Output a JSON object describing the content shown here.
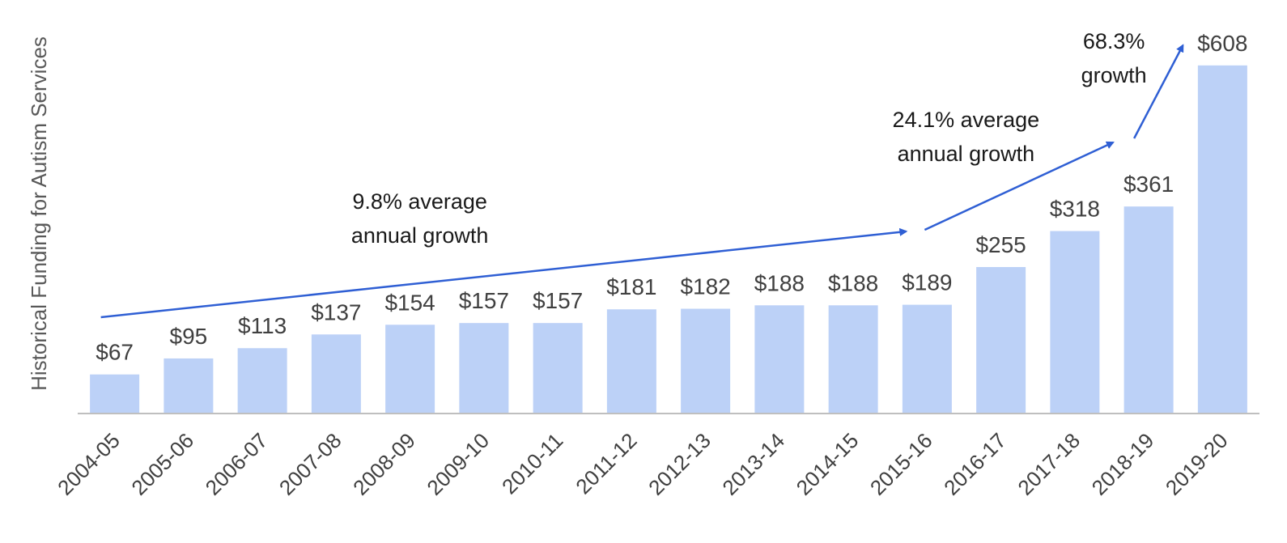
{
  "chart_data": {
    "type": "bar",
    "ylabel": "Historical Funding for Autism Services",
    "xlabel": "",
    "categories": [
      "2004-05",
      "2005-06",
      "2006-07",
      "2007-08",
      "2008-09",
      "2009-10",
      "2010-11",
      "2011-12",
      "2012-13",
      "2013-14",
      "2014-15",
      "2015-16",
      "2016-17",
      "2017-18",
      "2018-19",
      "2019-20"
    ],
    "values": [
      67,
      95,
      113,
      137,
      154,
      157,
      157,
      181,
      182,
      188,
      188,
      189,
      255,
      318,
      361,
      608
    ],
    "data_labels": [
      "$67",
      "$95",
      "$113",
      "$137",
      "$154",
      "$157",
      "$157",
      "$181",
      "$182",
      "$188",
      "$188",
      "$189",
      "$255",
      "$318",
      "$361",
      "$608"
    ],
    "ylim": [
      0,
      680
    ],
    "grid": false,
    "legend": "none",
    "bar_color": "#bcd1f7",
    "arrow_color": "#2f5fd4",
    "annotations": [
      {
        "lines": [
          "9.8% average",
          "annual growth"
        ],
        "from": "2004-05",
        "to": "2015-16"
      },
      {
        "lines": [
          "24.1% average",
          "annual growth"
        ],
        "from": "2015-16",
        "to": "2018-19"
      },
      {
        "lines": [
          "68.3%",
          "growth"
        ],
        "from": "2018-19",
        "to": "2019-20"
      }
    ]
  }
}
